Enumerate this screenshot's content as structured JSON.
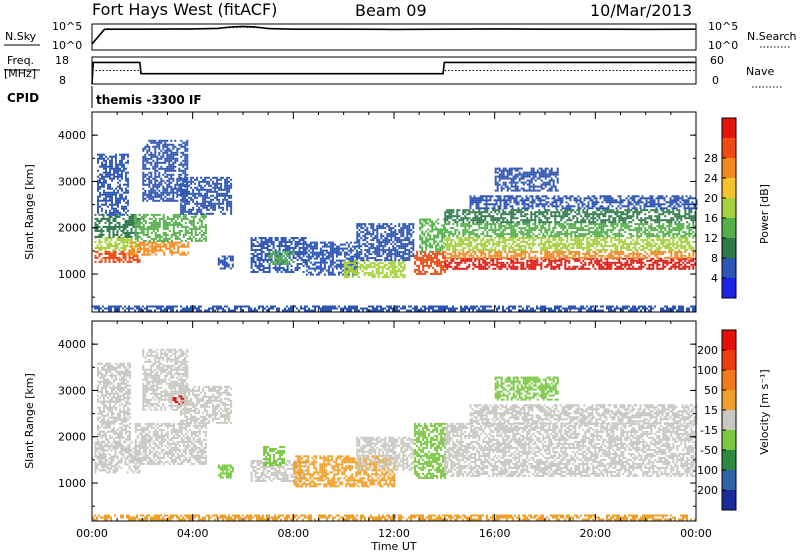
{
  "header": {
    "station": "Fort Hays West (fitACF)",
    "beam": "Beam 09",
    "date": "10/Mar/2013",
    "cpid_label": "CPID",
    "cpid_value": "themis -3300 IF"
  },
  "chart_data": [
    {
      "type": "line",
      "panel": "noise",
      "left_label": "N.Sky",
      "right_label": "N.Search",
      "left_ticks": [
        "10^5",
        "10^0"
      ],
      "right_ticks": [
        "10^5",
        "10^0"
      ],
      "scale": "log",
      "ylim": [
        1,
        100000
      ],
      "series": [
        {
          "name": "N.Sky",
          "x": [
            0,
            0.5,
            2,
            4,
            5,
            5.5,
            6,
            6.5,
            7,
            8,
            10,
            12,
            14,
            16,
            18,
            20,
            22,
            24
          ],
          "y": [
            20,
            30000,
            30000,
            35000,
            45000,
            90000,
            120000,
            90000,
            40000,
            30000,
            30000,
            28000,
            30000,
            35000,
            30000,
            30000,
            28000,
            30000
          ]
        },
        {
          "name": "N.Search",
          "x": [
            0,
            0.5,
            4,
            6,
            8,
            12,
            16,
            20,
            24
          ],
          "y": [
            20,
            25000,
            30000,
            80000,
            30000,
            25000,
            30000,
            28000,
            30000
          ]
        }
      ]
    },
    {
      "type": "line",
      "panel": "frequency",
      "left_label": "Freq.",
      "left_label2": "[MHz]",
      "right_label": "Nave",
      "left_ticks": [
        "18",
        "8"
      ],
      "right_ticks": [
        "60",
        "0"
      ],
      "ylim": [
        8,
        18
      ],
      "series": [
        {
          "name": "Freq.",
          "x": [
            0,
            0.05,
            1.9,
            1.95,
            13.95,
            14.0,
            24
          ],
          "y": [
            8,
            16.0,
            16.0,
            11.8,
            11.8,
            16.0,
            16.0
          ]
        },
        {
          "name": "Nave",
          "x": [
            0,
            1.9,
            1.95,
            13.95,
            14.0,
            24
          ],
          "y": [
            30,
            30,
            23,
            23,
            30,
            30
          ]
        }
      ]
    },
    {
      "type": "heatmap",
      "panel": "power",
      "ylabel": "Slant Range [km]",
      "x_range": [
        0,
        24
      ],
      "ylim": [
        180,
        4500
      ],
      "y_ticks": [
        1000,
        2000,
        3000,
        4000
      ],
      "colorbar_label": "Power [dB]",
      "colorbar_ticks": [
        4,
        8,
        12,
        16,
        20,
        24,
        28
      ],
      "colorbar_colors": [
        "#1e22e6",
        "#2d55b5",
        "#2e7a4a",
        "#55b04a",
        "#a6d23f",
        "#f3c42e",
        "#f3891e",
        "#ef4a12",
        "#e6140a"
      ],
      "regions": [
        {
          "t0": 0.1,
          "t1": 1.9,
          "r0": 1250,
          "r1": 1500,
          "level": 7
        },
        {
          "t0": 0.1,
          "t1": 1.9,
          "r0": 1500,
          "r1": 1800,
          "level": 4
        },
        {
          "t0": 0.1,
          "t1": 1.9,
          "r0": 1800,
          "r1": 2300,
          "level": 2
        },
        {
          "t0": 0.2,
          "t1": 1.4,
          "r0": 2300,
          "r1": 3600,
          "level": 1
        },
        {
          "t0": 1.4,
          "t1": 3.8,
          "r0": 1400,
          "r1": 1700,
          "level": 6
        },
        {
          "t0": 1.7,
          "t1": 4.5,
          "r0": 1700,
          "r1": 2300,
          "level": 3
        },
        {
          "t0": 2.0,
          "t1": 3.8,
          "r0": 2600,
          "r1": 3900,
          "level": 1
        },
        {
          "t0": 3.5,
          "t1": 5.5,
          "r0": 2300,
          "r1": 3100,
          "level": 1
        },
        {
          "t0": 5.0,
          "t1": 5.6,
          "r0": 1100,
          "r1": 1400,
          "level": 1
        },
        {
          "t0": 6.3,
          "t1": 8.5,
          "r0": 1050,
          "r1": 1800,
          "level": 1
        },
        {
          "t0": 7.0,
          "t1": 8.0,
          "r0": 1200,
          "r1": 1500,
          "level": 3
        },
        {
          "t0": 8.5,
          "t1": 10.5,
          "r0": 1000,
          "r1": 1700,
          "level": 1
        },
        {
          "t0": 10.0,
          "t1": 12.4,
          "r0": 950,
          "r1": 1300,
          "level": 4
        },
        {
          "t0": 10.5,
          "t1": 12.8,
          "r0": 1300,
          "r1": 2100,
          "level": 1
        },
        {
          "t0": 12.8,
          "t1": 14.0,
          "r0": 1000,
          "r1": 1500,
          "level": 7
        },
        {
          "t0": 13.0,
          "t1": 14.0,
          "r0": 1500,
          "r1": 2200,
          "level": 3
        },
        {
          "t0": 14.0,
          "t1": 24.0,
          "r0": 1100,
          "r1": 1350,
          "level": 8
        },
        {
          "t0": 14.0,
          "t1": 24.0,
          "r0": 1350,
          "r1": 1500,
          "level": 6
        },
        {
          "t0": 14.0,
          "t1": 24.0,
          "r0": 1500,
          "r1": 1800,
          "level": 4
        },
        {
          "t0": 14.0,
          "t1": 24.0,
          "r0": 1800,
          "r1": 2100,
          "level": 3
        },
        {
          "t0": 14.0,
          "t1": 24.0,
          "r0": 2100,
          "r1": 2400,
          "level": 2
        },
        {
          "t0": 15.0,
          "t1": 24.0,
          "r0": 2400,
          "r1": 2700,
          "level": 1
        },
        {
          "t0": 16.0,
          "t1": 18.5,
          "r0": 2800,
          "r1": 3300,
          "level": 1
        },
        {
          "t0": 0.0,
          "t1": 24.0,
          "r0": 200,
          "r1": 320,
          "level": 1
        }
      ]
    },
    {
      "type": "heatmap",
      "panel": "velocity",
      "ylabel": "Slant Range [km]",
      "xlabel": "Time UT",
      "x_range": [
        0,
        24
      ],
      "x_ticks": [
        "00:00",
        "04:00",
        "08:00",
        "12:00",
        "16:00",
        "20:00",
        "00:00"
      ],
      "ylim": [
        180,
        4500
      ],
      "y_ticks": [
        1000,
        2000,
        3000,
        4000
      ],
      "colorbar_label": "Velocity [m s⁻¹]",
      "colorbar_ticks": [
        200,
        100,
        50,
        15,
        -15,
        -50,
        -100,
        -200
      ],
      "colorbar_colors": [
        "#1a2a9a",
        "#2f62a8",
        "#2e8a3e",
        "#7ac943",
        "#c8c8c0",
        "#f0a02a",
        "#f07a1a",
        "#ee3b12",
        "#e6100a"
      ],
      "regions": [
        {
          "t0": 0.1,
          "t1": 1.9,
          "r0": 1250,
          "r1": 1900,
          "level": 4
        },
        {
          "t0": 0.2,
          "t1": 1.5,
          "r0": 1900,
          "r1": 3600,
          "level": 4
        },
        {
          "t0": 1.7,
          "t1": 4.5,
          "r0": 1400,
          "r1": 2300,
          "level": 4
        },
        {
          "t0": 2.0,
          "t1": 3.8,
          "r0": 2600,
          "r1": 3900,
          "level": 4
        },
        {
          "t0": 3.2,
          "t1": 3.6,
          "r0": 2700,
          "r1": 2900,
          "level": 8
        },
        {
          "t0": 3.5,
          "t1": 5.5,
          "r0": 2300,
          "r1": 3100,
          "level": 4
        },
        {
          "t0": 5.0,
          "t1": 5.6,
          "r0": 1100,
          "r1": 1400,
          "level": 3
        },
        {
          "t0": 6.3,
          "t1": 8.5,
          "r0": 1050,
          "r1": 1500,
          "level": 4
        },
        {
          "t0": 6.8,
          "t1": 7.6,
          "r0": 1400,
          "r1": 1800,
          "level": 3
        },
        {
          "t0": 8.0,
          "t1": 12.0,
          "r0": 950,
          "r1": 1600,
          "level": 5
        },
        {
          "t0": 10.5,
          "t1": 12.8,
          "r0": 1300,
          "r1": 2000,
          "level": 4
        },
        {
          "t0": 12.8,
          "t1": 14.0,
          "r0": 1100,
          "r1": 2300,
          "level": 3
        },
        {
          "t0": 14.0,
          "t1": 24.0,
          "r0": 1150,
          "r1": 2300,
          "level": 4
        },
        {
          "t0": 15.0,
          "t1": 24.0,
          "r0": 2300,
          "r1": 2700,
          "level": 4
        },
        {
          "t0": 16.0,
          "t1": 18.5,
          "r0": 2800,
          "r1": 3300,
          "level": 3
        },
        {
          "t0": 0.0,
          "t1": 24.0,
          "r0": 200,
          "r1": 320,
          "level": 5
        }
      ]
    }
  ]
}
